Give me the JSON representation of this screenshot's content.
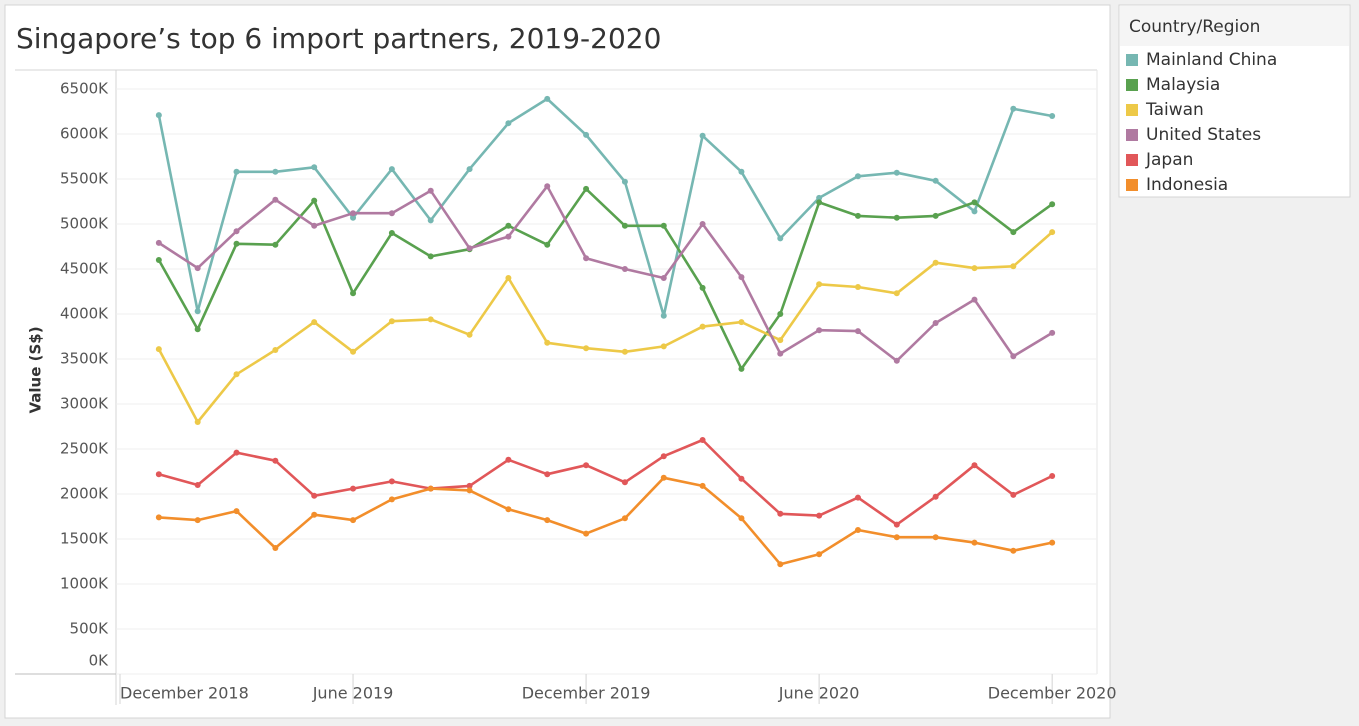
{
  "chart_data": {
    "type": "line",
    "title": "Singapore’s top 6 import partners, 2019-2020",
    "y_label": "Value (S$)",
    "legend_title": "Country/Region",
    "legend": "right",
    "grid": true,
    "x": [
      "2019-01",
      "2019-02",
      "2019-03",
      "2019-04",
      "2019-05",
      "2019-06",
      "2019-07",
      "2019-08",
      "2019-09",
      "2019-10",
      "2019-11",
      "2019-12",
      "2020-01",
      "2020-02",
      "2020-03",
      "2020-04",
      "2020-05",
      "2020-06",
      "2020-07",
      "2020-08",
      "2020-09",
      "2020-10",
      "2020-11",
      "2020-12"
    ],
    "xlim": [
      "2018-12",
      "2021-01"
    ],
    "xticks": [
      {
        "value": "2018-12",
        "label": "December 2018"
      },
      {
        "value": "2019-06",
        "label": "June 2019"
      },
      {
        "value": "2019-12",
        "label": "December 2019"
      },
      {
        "value": "2020-06",
        "label": "June 2020"
      },
      {
        "value": "2020-12",
        "label": "December 2020"
      }
    ],
    "ylim": [
      0,
      6711
    ],
    "yticks": [
      {
        "value": 0,
        "label": "0K"
      },
      {
        "value": 500,
        "label": "500K"
      },
      {
        "value": 1000,
        "label": "1000K"
      },
      {
        "value": 1500,
        "label": "1500K"
      },
      {
        "value": 2000,
        "label": "2000K"
      },
      {
        "value": 2500,
        "label": "2500K"
      },
      {
        "value": 3000,
        "label": "3000K"
      },
      {
        "value": 3500,
        "label": "3500K"
      },
      {
        "value": 4000,
        "label": "4000K"
      },
      {
        "value": 4500,
        "label": "4500K"
      },
      {
        "value": 5000,
        "label": "5000K"
      },
      {
        "value": 5500,
        "label": "5500K"
      },
      {
        "value": 6000,
        "label": "6000K"
      },
      {
        "value": 6500,
        "label": "6500K"
      }
    ],
    "series": [
      {
        "name": "Mainland China",
        "color": "#76b7b2",
        "values": [
          6210,
          4030,
          5580,
          5580,
          5630,
          5070,
          5610,
          5040,
          5610,
          6120,
          6390,
          5990,
          5470,
          3980,
          5980,
          5580,
          4840,
          5290,
          5530,
          5570,
          5480,
          5140,
          6280,
          6200
        ]
      },
      {
        "name": "Malaysia",
        "color": "#59a14f",
        "values": [
          4600,
          3830,
          4780,
          4770,
          5260,
          4230,
          4900,
          4640,
          4720,
          4980,
          4770,
          5390,
          4980,
          4980,
          4290,
          3390,
          4000,
          5240,
          5090,
          5070,
          5090,
          5240,
          4910,
          5220
        ]
      },
      {
        "name": "Taiwan",
        "color": "#edc948",
        "values": [
          3610,
          2800,
          3330,
          3600,
          3910,
          3580,
          3920,
          3940,
          3770,
          4400,
          3680,
          3620,
          3580,
          3640,
          3860,
          3910,
          3710,
          4330,
          4300,
          4230,
          4570,
          4510,
          4530,
          4910
        ]
      },
      {
        "name": "United States",
        "color": "#b07aa1",
        "values": [
          4790,
          4510,
          4920,
          5270,
          4980,
          5120,
          5120,
          5370,
          4730,
          4860,
          5420,
          4620,
          4500,
          4400,
          5000,
          4410,
          3560,
          3820,
          3810,
          3480,
          3900,
          4160,
          3530,
          3790
        ]
      },
      {
        "name": "Japan",
        "color": "#e15759",
        "values": [
          2220,
          2100,
          2460,
          2370,
          1980,
          2060,
          2140,
          2060,
          2090,
          2380,
          2220,
          2320,
          2130,
          2420,
          2600,
          2170,
          1780,
          1760,
          1960,
          1660,
          1970,
          2320,
          1990,
          2200
        ]
      },
      {
        "name": "Indonesia",
        "color": "#f28e2b",
        "values": [
          1740,
          1710,
          1810,
          1400,
          1770,
          1710,
          1940,
          2060,
          2040,
          1830,
          1710,
          1560,
          1730,
          2180,
          2090,
          1730,
          1220,
          1330,
          1600,
          1520,
          1520,
          1460,
          1370,
          1460
        ]
      }
    ]
  }
}
